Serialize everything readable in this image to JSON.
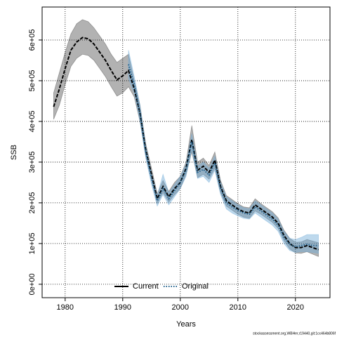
{
  "chart_data": {
    "type": "line",
    "xlabel": "Years",
    "ylabel": "SSB",
    "footer": "stockassessment.org,WBHer,r19440,git:1cc464b806f",
    "xlim": [
      1976,
      2026
    ],
    "xticks": [
      1980,
      1990,
      2000,
      2010,
      2020
    ],
    "ylim": [
      -33000,
      681000
    ],
    "yticks": [
      {
        "value": 0,
        "label": "0e+00"
      },
      {
        "value": 100000,
        "label": "1e+05"
      },
      {
        "value": 200000,
        "label": "2e+05"
      },
      {
        "value": 300000,
        "label": "3e+05"
      },
      {
        "value": 400000,
        "label": "4e+05"
      },
      {
        "value": 500000,
        "label": "5e+05"
      },
      {
        "value": 600000,
        "label": "6e+05"
      }
    ],
    "grid": true,
    "legend": "bottom",
    "series": [
      {
        "name": "Current",
        "color": "#000000",
        "band_color": "rgba(0,0,0,0.3)",
        "x": [
          1978,
          1979,
          1980,
          1981,
          1982,
          1983,
          1984,
          1985,
          1986,
          1987,
          1988,
          1989,
          1990,
          1991,
          1992,
          1993,
          1994,
          1995,
          1996,
          1997,
          1998,
          1999,
          2000,
          2001,
          2002,
          2003,
          2004,
          2005,
          2006,
          2007,
          2008,
          2009,
          2010,
          2011,
          2012,
          2013,
          2014,
          2015,
          2016,
          2017,
          2018,
          2019,
          2020,
          2021,
          2022,
          2023,
          2024
        ],
        "values": [
          436000,
          480000,
          530000,
          575000,
          595000,
          606000,
          603000,
          590000,
          570000,
          550000,
          525000,
          502000,
          512000,
          525000,
          480000,
          420000,
          330000,
          270000,
          210000,
          240000,
          215000,
          235000,
          250000,
          285000,
          355000,
          280000,
          290000,
          275000,
          305000,
          240000,
          205000,
          195000,
          185000,
          178000,
          175000,
          195000,
          185000,
          175000,
          165000,
          150000,
          120000,
          100000,
          90000,
          90000,
          95000,
          90000,
          85000
        ],
        "upper": [
          470000,
          520000,
          570000,
          615000,
          640000,
          650000,
          645000,
          630000,
          610000,
          590000,
          565000,
          545000,
          555000,
          565000,
          500000,
          440000,
          345000,
          285000,
          222000,
          255000,
          228000,
          250000,
          265000,
          300000,
          390000,
          300000,
          310000,
          292000,
          325000,
          255000,
          218000,
          208000,
          198000,
          190000,
          188000,
          210000,
          198000,
          188000,
          178000,
          163000,
          133000,
          113000,
          103000,
          104000,
          110000,
          106000,
          102000
        ],
        "lower": [
          405000,
          440000,
          490000,
          535000,
          555000,
          565000,
          562000,
          550000,
          530000,
          510000,
          485000,
          462000,
          470000,
          485000,
          460000,
          400000,
          315000,
          255000,
          198000,
          225000,
          202000,
          220000,
          235000,
          270000,
          325000,
          262000,
          270000,
          258000,
          285000,
          225000,
          192000,
          182000,
          172000,
          165000,
          162000,
          180000,
          172000,
          162000,
          152000,
          137000,
          107000,
          87000,
          77000,
          76000,
          80000,
          74000,
          68000
        ]
      },
      {
        "name": "Original",
        "color": "#1f5f8b",
        "band_color": "rgba(110,170,215,0.45)",
        "x": [
          1991,
          1992,
          1993,
          1994,
          1995,
          1996,
          1997,
          1998,
          1999,
          2000,
          2001,
          2002,
          2003,
          2004,
          2005,
          2006,
          2007,
          2008,
          2009,
          2010,
          2011,
          2012,
          2013,
          2014,
          2015,
          2016,
          2017,
          2018,
          2019,
          2020,
          2021,
          2022,
          2023,
          2024
        ],
        "values": [
          540000,
          490000,
          420000,
          325000,
          260000,
          205000,
          235000,
          210000,
          230000,
          250000,
          280000,
          350000,
          275000,
          282000,
          268000,
          298000,
          235000,
          200000,
          190000,
          182000,
          175000,
          172000,
          190000,
          180000,
          170000,
          160000,
          145000,
          115000,
          98000,
          92000,
          95000,
          98000,
          95000,
          95000
        ],
        "upper": [
          575000,
          510000,
          440000,
          340000,
          275000,
          218000,
          270000,
          225000,
          245000,
          265000,
          295000,
          370000,
          290000,
          300000,
          285000,
          315000,
          250000,
          215000,
          205000,
          195000,
          188000,
          185000,
          205000,
          195000,
          185000,
          175000,
          160000,
          130000,
          113000,
          110000,
          115000,
          122000,
          122000,
          122000
        ],
        "lower": [
          505000,
          470000,
          400000,
          310000,
          245000,
          192000,
          220000,
          195000,
          215000,
          235000,
          265000,
          330000,
          260000,
          265000,
          250000,
          280000,
          220000,
          185000,
          175000,
          168000,
          162000,
          160000,
          175000,
          165000,
          155000,
          145000,
          130000,
          100000,
          83000,
          78000,
          80000,
          80000,
          78000,
          76000
        ]
      }
    ]
  }
}
